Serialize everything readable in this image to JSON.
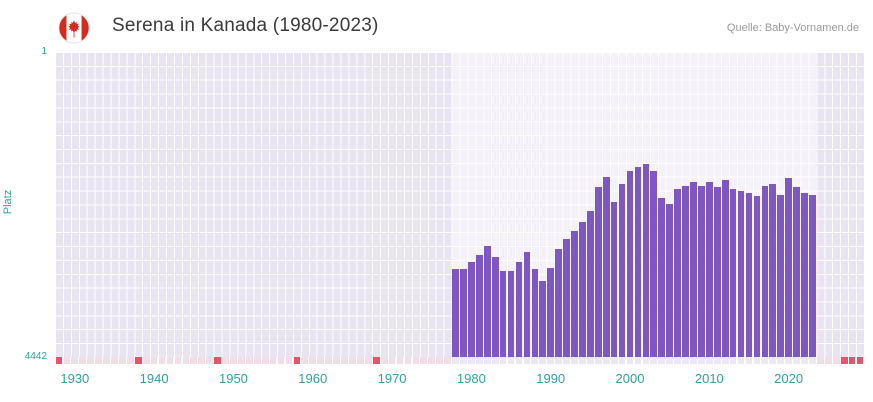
{
  "header": {
    "title": "Serena in Kanada (1980-2023)",
    "source": "Quelle: Baby-Vornamen.de",
    "flag": "canada"
  },
  "chart_data": {
    "type": "bar",
    "title": "Serena in Kanada (1980-2023)",
    "xlabel": "",
    "ylabel": "Platz",
    "grid": true,
    "legend": false,
    "y_axis": {
      "min": 1,
      "max": 4442,
      "inverted": true,
      "top_tick": "1",
      "bottom_tick": "4442"
    },
    "x_axis": {
      "min": 1927.5,
      "max": 2029.5,
      "ticks": [
        "1930",
        "1940",
        "1950",
        "1960",
        "1970",
        "1980",
        "1990",
        "2000",
        "2010",
        "2020"
      ]
    },
    "data_year_range": [
      1978,
      2023
    ],
    "series": [
      {
        "name": "Platz",
        "years": [
          1978,
          1979,
          1980,
          1981,
          1982,
          1983,
          1984,
          1985,
          1986,
          1987,
          1988,
          1989,
          1990,
          1991,
          1992,
          1993,
          1994,
          1995,
          1996,
          1997,
          1998,
          1999,
          2000,
          2001,
          2002,
          2003,
          2004,
          2005,
          2006,
          2007,
          2008,
          2009,
          2010,
          2011,
          2012,
          2013,
          2014,
          2015,
          2016,
          2017,
          2018,
          2019,
          2020,
          2021,
          2022,
          2023
        ],
        "ranks": [
          3160,
          3160,
          3060,
          2950,
          2830,
          2990,
          3190,
          3190,
          3060,
          2920,
          3160,
          3330,
          3140,
          2870,
          2730,
          2610,
          2470,
          2320,
          1970,
          1820,
          2190,
          1930,
          1740,
          1670,
          1630,
          1740,
          2120,
          2220,
          2000,
          1950,
          1900,
          1950,
          1890,
          1960,
          1860,
          2000,
          2030,
          2060,
          2100,
          1950,
          1920,
          2090,
          1830,
          1970,
          2060,
          2090
        ]
      }
    ],
    "no_rank_marker_years": [
      1928,
      1938,
      1948,
      1958,
      1968,
      2027,
      2028,
      2029
    ],
    "colors": {
      "bar": "#7E57C2",
      "plot_bg": "#E8E4F1",
      "band": "rgba(255,255,255,0.5)",
      "grid": "#FFFFFF",
      "axis_text": "#2EA3A0",
      "marker_red": "#E4556C",
      "strip_inside": "#ECE8F5",
      "strip_outside": "#F3DEE7",
      "flag_red": "#D52B1E"
    }
  }
}
